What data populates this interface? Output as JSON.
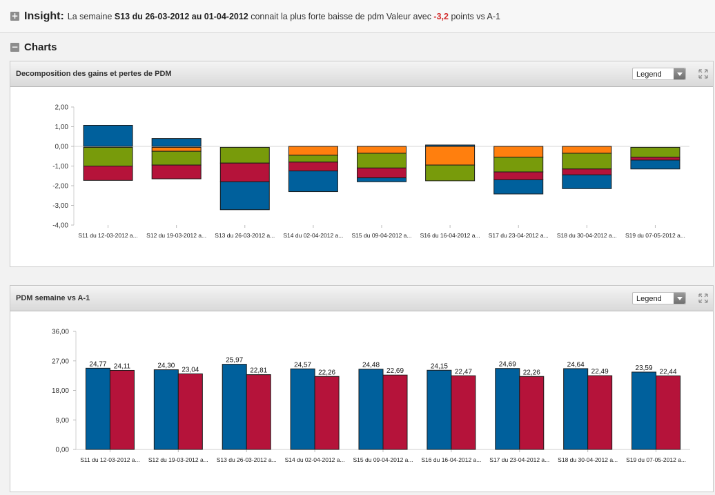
{
  "insight": {
    "toggle": "+",
    "label": "Insight:",
    "text_before": "La semaine ",
    "week": "S13 du 26-03-2012 au 01-04-2012",
    "text_middle": " connait la plus forte baisse de pdm Valeur avec ",
    "value": "-3,2",
    "text_after": " points vs A-1"
  },
  "charts_section": {
    "toggle": "−",
    "title": "Charts"
  },
  "colors": {
    "blue": "#00609c",
    "red": "#b5133a",
    "green": "#789b0b",
    "orange": "#ff7f0e"
  },
  "chart_data": [
    {
      "type": "bar",
      "stacked": true,
      "title": "Decomposition des gains et pertes de PDM",
      "legend_label": "Legend",
      "ylim": [
        -4,
        2
      ],
      "y_ticks": [
        "2,00",
        "1,00",
        "0,00",
        "-1,00",
        "-2,00",
        "-3,00",
        "-4,00"
      ],
      "y_tick_values": [
        2,
        1,
        0,
        -1,
        -2,
        -3,
        -4
      ],
      "categories": [
        "S11 du 12-03-2012 a...",
        "S12 du 19-03-2012 a...",
        "S13 du 26-03-2012 a...",
        "S14 du 02-04-2012 a...",
        "S15 du 09-04-2012 a...",
        "S16 du 16-04-2012 a...",
        "S17 du 23-04-2012 a...",
        "S18 du 30-04-2012 a...",
        "S19 du 07-05-2012 a..."
      ],
      "bars": [
        [
          {
            "color": "blue",
            "from": 0,
            "to": 1.07
          },
          {
            "color": "green",
            "from": -0.05,
            "to": -1.0
          },
          {
            "color": "red",
            "from": -1.0,
            "to": -1.73
          }
        ],
        [
          {
            "color": "blue",
            "from": 0,
            "to": 0.4
          },
          {
            "color": "orange",
            "from": -0.05,
            "to": -0.25
          },
          {
            "color": "green",
            "from": -0.25,
            "to": -0.95
          },
          {
            "color": "red",
            "from": -0.95,
            "to": -1.65
          }
        ],
        [
          {
            "color": "green",
            "from": -0.05,
            "to": -0.85
          },
          {
            "color": "red",
            "from": -0.85,
            "to": -1.8
          },
          {
            "color": "blue",
            "from": -1.8,
            "to": -3.22
          }
        ],
        [
          {
            "color": "orange",
            "from": 0,
            "to": -0.45
          },
          {
            "color": "green",
            "from": -0.45,
            "to": -0.8
          },
          {
            "color": "red",
            "from": -0.8,
            "to": -1.25
          },
          {
            "color": "blue",
            "from": -1.25,
            "to": -2.3
          }
        ],
        [
          {
            "color": "orange",
            "from": 0,
            "to": -0.35
          },
          {
            "color": "green",
            "from": -0.35,
            "to": -1.1
          },
          {
            "color": "red",
            "from": -1.1,
            "to": -1.6
          },
          {
            "color": "blue",
            "from": -1.6,
            "to": -1.8
          }
        ],
        [
          {
            "color": "blue",
            "from": 0.07,
            "to": 0
          },
          {
            "color": "orange",
            "from": 0,
            "to": -0.95
          },
          {
            "color": "green",
            "from": -0.95,
            "to": -1.75
          }
        ],
        [
          {
            "color": "orange",
            "from": 0,
            "to": -0.55
          },
          {
            "color": "green",
            "from": -0.55,
            "to": -1.3
          },
          {
            "color": "red",
            "from": -1.3,
            "to": -1.7
          },
          {
            "color": "blue",
            "from": -1.7,
            "to": -2.42
          }
        ],
        [
          {
            "color": "orange",
            "from": 0,
            "to": -0.35
          },
          {
            "color": "green",
            "from": -0.35,
            "to": -1.15
          },
          {
            "color": "red",
            "from": -1.15,
            "to": -1.45
          },
          {
            "color": "blue",
            "from": -1.45,
            "to": -2.15
          }
        ],
        [
          {
            "color": "green",
            "from": -0.05,
            "to": -0.55
          },
          {
            "color": "red",
            "from": -0.55,
            "to": -0.7
          },
          {
            "color": "blue",
            "from": -0.7,
            "to": -1.15
          }
        ]
      ]
    },
    {
      "type": "bar",
      "title": "PDM semaine vs A-1",
      "legend_label": "Legend",
      "ylim": [
        0,
        36
      ],
      "y_ticks": [
        "36,00",
        "27,00",
        "18,00",
        "9,00",
        "0,00"
      ],
      "y_tick_values": [
        36,
        27,
        18,
        9,
        0
      ],
      "categories": [
        "S11 du 12-03-2012 a...",
        "S12 du 19-03-2012 a...",
        "S13 du 26-03-2012 a...",
        "S14 du 02-04-2012 a...",
        "S15 du 09-04-2012 a...",
        "S16 du 16-04-2012 a...",
        "S17 du 23-04-2012 a...",
        "S18 du 30-04-2012 a...",
        "S19 du 07-05-2012 a..."
      ],
      "series": [
        {
          "color": "blue",
          "values": [
            24.77,
            24.3,
            25.97,
            24.57,
            24.48,
            24.15,
            24.69,
            24.64,
            23.59
          ],
          "labels": [
            "24,77",
            "24,30",
            "25,97",
            "24,57",
            "24,48",
            "24,15",
            "24,69",
            "24,64",
            "23,59"
          ]
        },
        {
          "color": "red",
          "values": [
            24.11,
            23.04,
            22.81,
            22.26,
            22.69,
            22.47,
            22.26,
            22.49,
            22.44
          ],
          "labels": [
            "24,11",
            "23,04",
            "22,81",
            "22,26",
            "22,69",
            "22,47",
            "22,26",
            "22,49",
            "22,44"
          ]
        }
      ]
    }
  ]
}
